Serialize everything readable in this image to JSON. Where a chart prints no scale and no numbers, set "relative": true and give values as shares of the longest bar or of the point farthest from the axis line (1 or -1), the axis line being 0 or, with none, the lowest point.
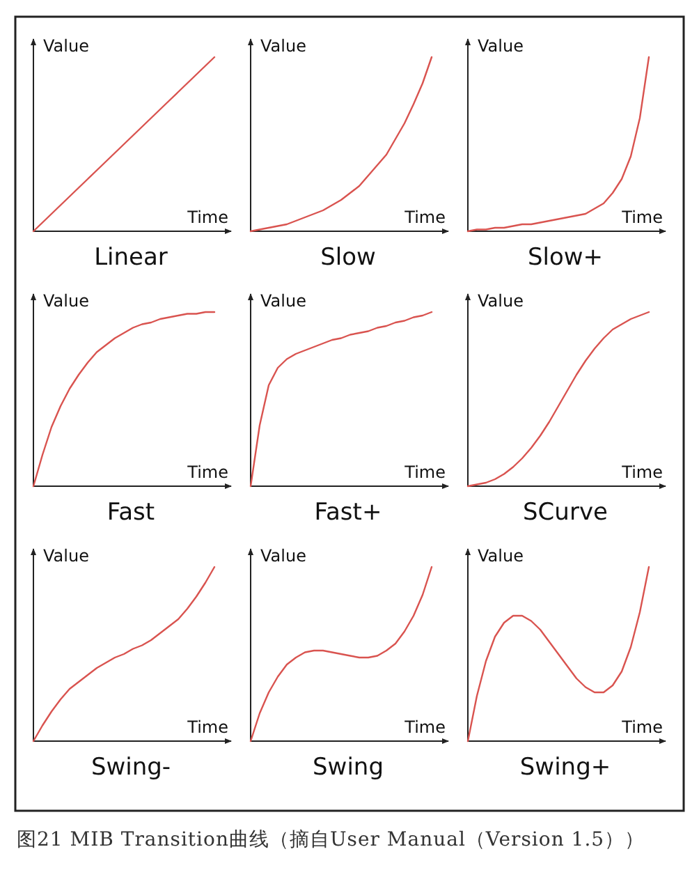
{
  "chart_data": [
    {
      "type": "line",
      "title": "Linear",
      "xlabel": "Time",
      "ylabel": "Value",
      "relative": true,
      "color": "#d9534f",
      "categories": [
        null,
        null,
        null,
        null,
        null,
        null,
        null,
        null,
        null,
        null,
        null,
        null,
        null,
        null,
        null,
        null,
        null,
        null,
        null,
        null,
        null
      ],
      "values": [
        0,
        0.05,
        0.1,
        0.15,
        0.2,
        0.25,
        0.3,
        0.35,
        0.4,
        0.45,
        0.5,
        0.55,
        0.6,
        0.65,
        0.7,
        0.75,
        0.8,
        0.85,
        0.9,
        0.95,
        1
      ]
    },
    {
      "type": "line",
      "title": "Slow",
      "xlabel": "Time",
      "ylabel": "Value",
      "relative": true,
      "color": "#d9534f",
      "categories": [
        null,
        null,
        null,
        null,
        null,
        null,
        null,
        null,
        null,
        null,
        null,
        null,
        null,
        null,
        null,
        null,
        null,
        null,
        null,
        null,
        null
      ],
      "values": [
        0,
        0.01,
        0.02,
        0.03,
        0.04,
        0.06,
        0.08,
        0.1,
        0.12,
        0.15,
        0.18,
        0.22,
        0.26,
        0.32,
        0.38,
        0.44,
        0.53,
        0.62,
        0.73,
        0.85,
        1
      ]
    },
    {
      "type": "line",
      "title": "Slow+",
      "xlabel": "Time",
      "ylabel": "Value",
      "relative": true,
      "color": "#d9534f",
      "categories": [
        null,
        null,
        null,
        null,
        null,
        null,
        null,
        null,
        null,
        null,
        null,
        null,
        null,
        null,
        null,
        null,
        null,
        null,
        null,
        null,
        null
      ],
      "values": [
        0,
        0.01,
        0.01,
        0.02,
        0.02,
        0.03,
        0.04,
        0.04,
        0.05,
        0.06,
        0.07,
        0.08,
        0.09,
        0.1,
        0.13,
        0.16,
        0.22,
        0.3,
        0.43,
        0.65,
        1
      ]
    },
    {
      "type": "line",
      "title": "Fast",
      "xlabel": "Time",
      "ylabel": "Value",
      "relative": true,
      "color": "#d9534f",
      "categories": [
        null,
        null,
        null,
        null,
        null,
        null,
        null,
        null,
        null,
        null,
        null,
        null,
        null,
        null,
        null,
        null,
        null,
        null,
        null,
        null,
        null
      ],
      "values": [
        0,
        0.18,
        0.34,
        0.46,
        0.56,
        0.64,
        0.71,
        0.77,
        0.81,
        0.85,
        0.88,
        0.91,
        0.93,
        0.94,
        0.96,
        0.97,
        0.98,
        0.99,
        0.99,
        1,
        1
      ]
    },
    {
      "type": "line",
      "title": "Fast+",
      "xlabel": "Time",
      "ylabel": "Value",
      "relative": true,
      "color": "#d9534f",
      "categories": [
        null,
        null,
        null,
        null,
        null,
        null,
        null,
        null,
        null,
        null,
        null,
        null,
        null,
        null,
        null,
        null,
        null,
        null,
        null,
        null,
        null
      ],
      "values": [
        0,
        0.35,
        0.58,
        0.68,
        0.73,
        0.76,
        0.78,
        0.8,
        0.82,
        0.84,
        0.85,
        0.87,
        0.88,
        0.89,
        0.91,
        0.92,
        0.94,
        0.95,
        0.97,
        0.98,
        1
      ]
    },
    {
      "type": "line",
      "title": "SCurve",
      "xlabel": "Time",
      "ylabel": "Value",
      "relative": true,
      "color": "#d9534f",
      "categories": [
        null,
        null,
        null,
        null,
        null,
        null,
        null,
        null,
        null,
        null,
        null,
        null,
        null,
        null,
        null,
        null,
        null,
        null,
        null,
        null,
        null
      ],
      "values": [
        0,
        0.01,
        0.02,
        0.04,
        0.07,
        0.11,
        0.16,
        0.22,
        0.29,
        0.37,
        0.46,
        0.55,
        0.64,
        0.72,
        0.79,
        0.85,
        0.9,
        0.93,
        0.96,
        0.98,
        1
      ]
    },
    {
      "type": "line",
      "title": "Swing-",
      "xlabel": "Time",
      "ylabel": "Value",
      "relative": true,
      "color": "#d9534f",
      "categories": [
        null,
        null,
        null,
        null,
        null,
        null,
        null,
        null,
        null,
        null,
        null,
        null,
        null,
        null,
        null,
        null,
        null,
        null,
        null,
        null,
        null
      ],
      "values": [
        0,
        0.09,
        0.17,
        0.24,
        0.3,
        0.34,
        0.38,
        0.42,
        0.45,
        0.48,
        0.5,
        0.53,
        0.55,
        0.58,
        0.62,
        0.66,
        0.7,
        0.76,
        0.83,
        0.91,
        1
      ]
    },
    {
      "type": "line",
      "title": "Swing",
      "xlabel": "Time",
      "ylabel": "Value",
      "relative": true,
      "color": "#d9534f",
      "categories": [
        null,
        null,
        null,
        null,
        null,
        null,
        null,
        null,
        null,
        null,
        null,
        null,
        null,
        null,
        null,
        null,
        null,
        null,
        null,
        null,
        null
      ],
      "values": [
        0,
        0.16,
        0.28,
        0.37,
        0.44,
        0.48,
        0.51,
        0.52,
        0.52,
        0.51,
        0.5,
        0.49,
        0.48,
        0.48,
        0.49,
        0.52,
        0.56,
        0.63,
        0.72,
        0.84,
        1
      ]
    },
    {
      "type": "line",
      "title": "Swing+",
      "xlabel": "Time",
      "ylabel": "Value",
      "relative": true,
      "color": "#d9534f",
      "categories": [
        null,
        null,
        null,
        null,
        null,
        null,
        null,
        null,
        null,
        null,
        null,
        null,
        null,
        null,
        null,
        null,
        null,
        null,
        null,
        null,
        null
      ],
      "values": [
        0,
        0.26,
        0.46,
        0.6,
        0.68,
        0.72,
        0.72,
        0.69,
        0.64,
        0.57,
        0.5,
        0.43,
        0.36,
        0.31,
        0.28,
        0.28,
        0.32,
        0.4,
        0.54,
        0.74,
        1
      ]
    },
    {
      "type": "other",
      "annotations": [
        "图21 MIB Transition曲线（摘自User Manual（Version 1.5））"
      ]
    }
  ]
}
